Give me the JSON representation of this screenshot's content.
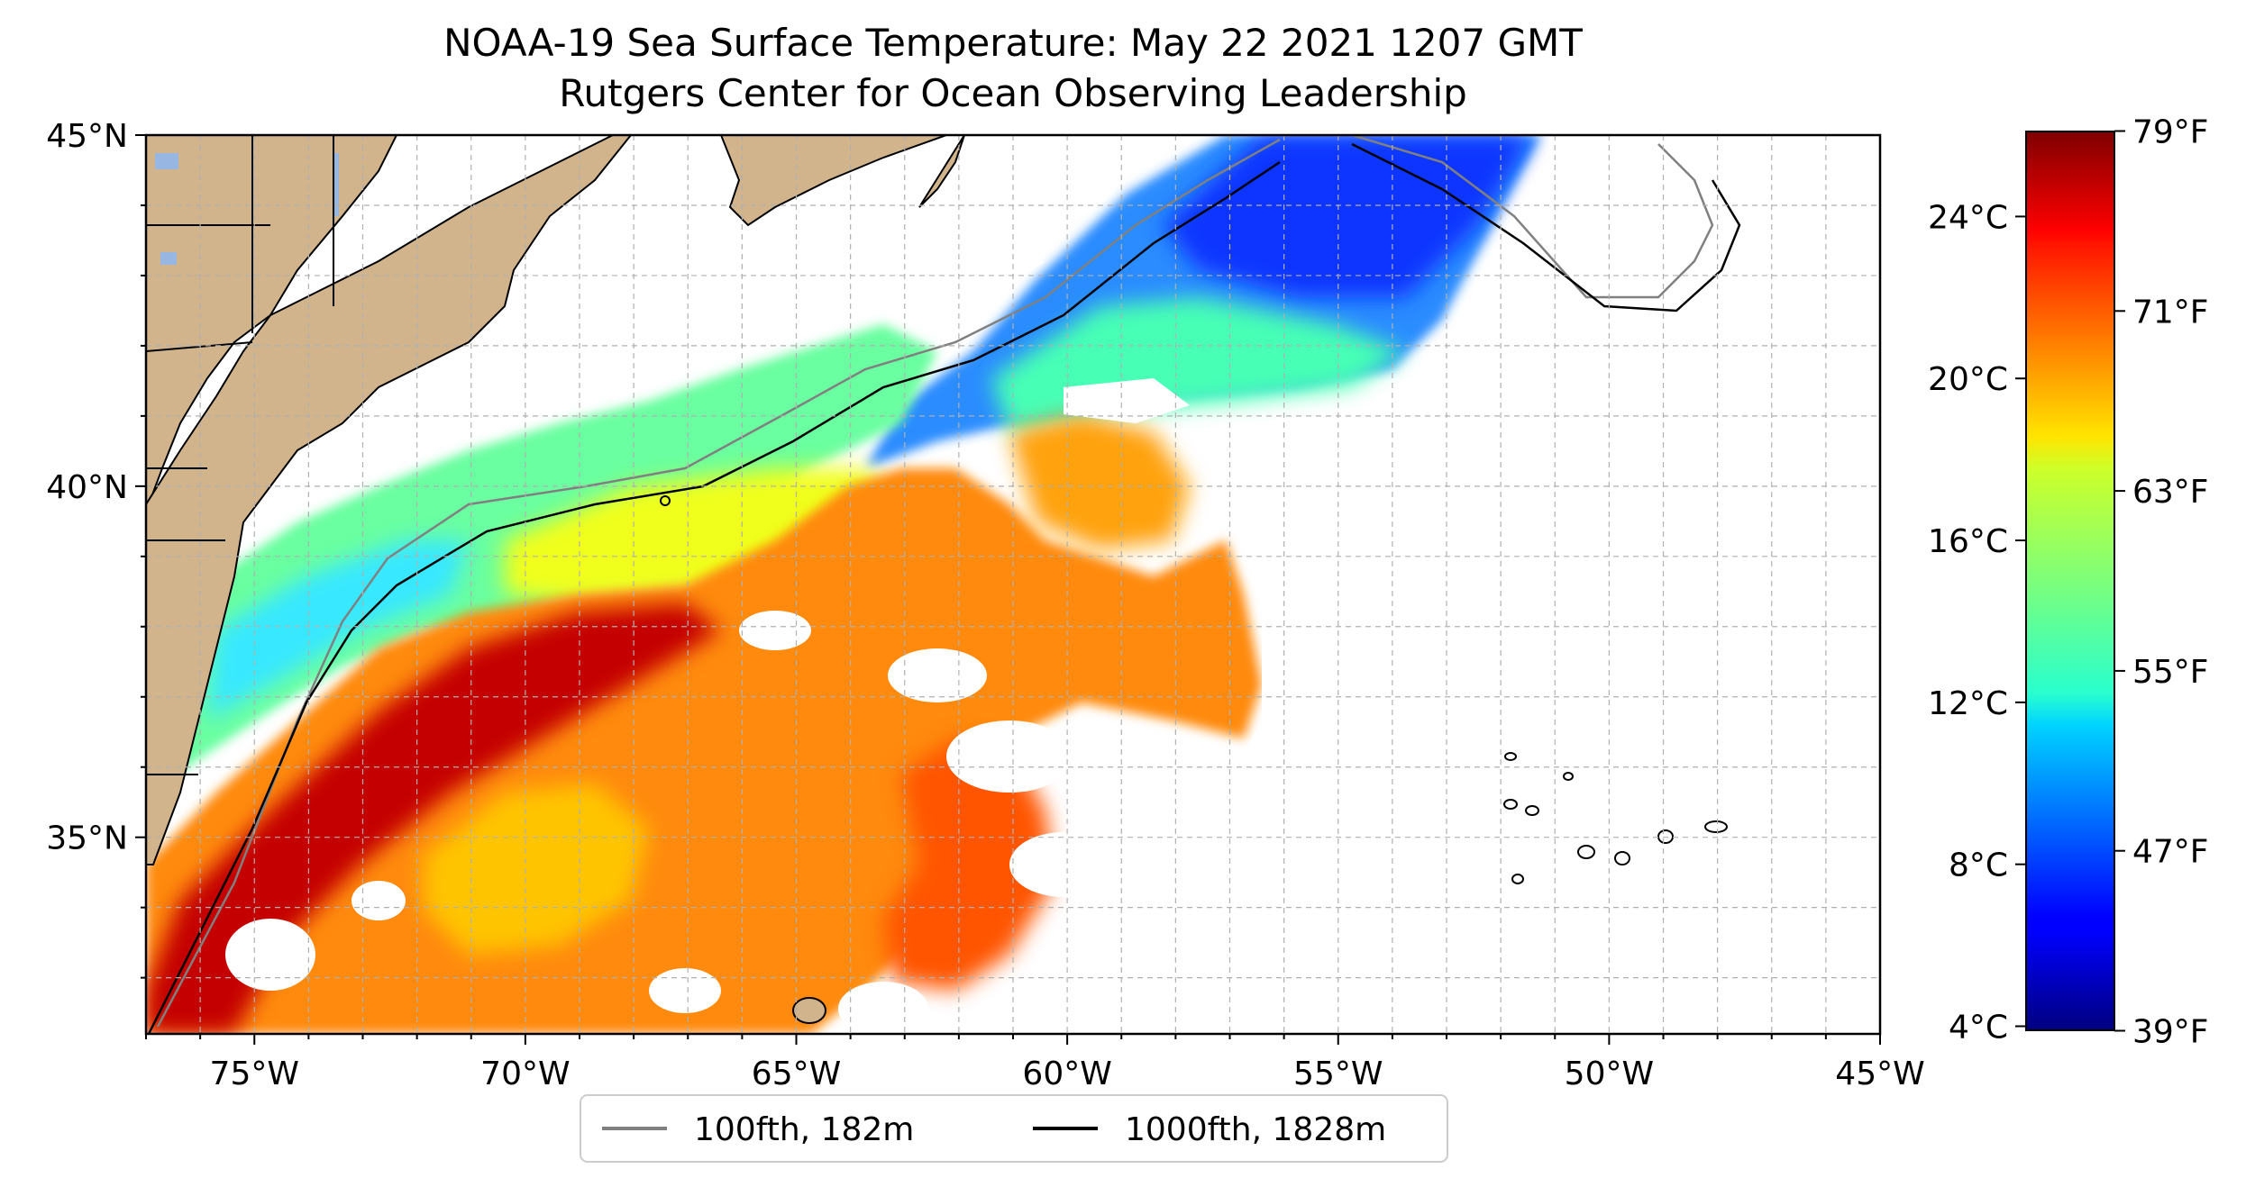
{
  "title": {
    "line1": "NOAA-19 Sea Surface Temperature: May 22 2021 1207 GMT",
    "line2": "Rutgers Center for Ocean Observing Leadership"
  },
  "map": {
    "projection": "lat-lon",
    "lon_range": [
      -77,
      -45
    ],
    "lat_range": [
      32.2,
      45
    ],
    "gridlines": "dashed",
    "x_ticks": [
      {
        "value": -75,
        "label": "75°W"
      },
      {
        "value": -70,
        "label": "70°W"
      },
      {
        "value": -65,
        "label": "65°W"
      },
      {
        "value": -60,
        "label": "60°W"
      },
      {
        "value": -55,
        "label": "55°W"
      },
      {
        "value": -50,
        "label": "50°W"
      },
      {
        "value": -45,
        "label": "45°W"
      }
    ],
    "y_ticks": [
      {
        "value": 45,
        "label": "45°N"
      },
      {
        "value": 40,
        "label": "40°N"
      },
      {
        "value": 35,
        "label": "35°N"
      }
    ],
    "colors": {
      "land": "#d2b48c",
      "lakes": "#97b6e1",
      "isobath_100": "#808080",
      "isobath_1000": "#000000"
    }
  },
  "legend": {
    "placement": "bottom-center",
    "items": [
      {
        "label": "100fth, 182m",
        "color": "#808080"
      },
      {
        "label": "1000fth, 1828m",
        "color": "#000000"
      }
    ]
  },
  "colorbar": {
    "colormap": "jet",
    "range_celsius": [
      3.9,
      26.1
    ],
    "celsius_ticks": [
      {
        "value": 4,
        "label": "4°C"
      },
      {
        "value": 8,
        "label": "8°C"
      },
      {
        "value": 12,
        "label": "12°C"
      },
      {
        "value": 16,
        "label": "16°C"
      },
      {
        "value": 20,
        "label": "20°C"
      },
      {
        "value": 24,
        "label": "24°C"
      }
    ],
    "fahrenheit_ticks": [
      {
        "value": 39,
        "label": "39°F"
      },
      {
        "value": 47,
        "label": "47°F"
      },
      {
        "value": 55,
        "label": "55°F"
      },
      {
        "value": 63,
        "label": "63°F"
      },
      {
        "value": 71,
        "label": "71°F"
      },
      {
        "value": 79,
        "label": "79°F"
      }
    ]
  }
}
